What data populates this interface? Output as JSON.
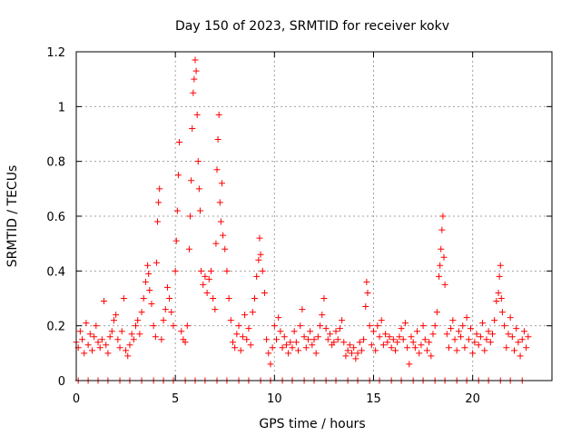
{
  "chart_data": {
    "type": "scatter",
    "title": "Day 150 of 2023, SRMTID for receiver kokv",
    "xlabel": "GPS time / hours",
    "ylabel": "SRMTID / TECUs",
    "xlim": [
      0,
      24
    ],
    "ylim": [
      0,
      1.2
    ],
    "xticks": [
      0,
      5,
      10,
      15,
      20
    ],
    "yticks": [
      0,
      0.2,
      0.4,
      0.6,
      0.8,
      1,
      1.2
    ],
    "xtick_labels": [
      "0",
      "5",
      "10",
      "15",
      "20"
    ],
    "ytick_labels": [
      "0",
      "0.2",
      "0.4",
      "0.6",
      "0.8",
      "1",
      "1.2"
    ],
    "grid": true,
    "marker": "+",
    "marker_color": "#ff0000",
    "series": [
      {
        "name": "SRMTID",
        "points": [
          [
            0.0,
            0.14
          ],
          [
            0.1,
            0.12
          ],
          [
            0.2,
            0.18
          ],
          [
            0.3,
            0.15
          ],
          [
            0.4,
            0.1
          ],
          [
            0.5,
            0.21
          ],
          [
            0.6,
            0.13
          ],
          [
            0.7,
            0.17
          ],
          [
            0.8,
            0.11
          ],
          [
            0.9,
            0.16
          ],
          [
            1.0,
            0.2
          ],
          [
            1.1,
            0.14
          ],
          [
            1.2,
            0.12
          ],
          [
            1.3,
            0.15
          ],
          [
            1.4,
            0.29
          ],
          [
            1.5,
            0.13
          ],
          [
            1.6,
            0.1
          ],
          [
            1.7,
            0.16
          ],
          [
            1.8,
            0.18
          ],
          [
            1.9,
            0.22
          ],
          [
            2.0,
            0.24
          ],
          [
            2.1,
            0.15
          ],
          [
            2.2,
            0.12
          ],
          [
            2.3,
            0.18
          ],
          [
            2.4,
            0.3
          ],
          [
            2.5,
            0.11
          ],
          [
            2.6,
            0.09
          ],
          [
            2.7,
            0.13
          ],
          [
            2.8,
            0.17
          ],
          [
            2.9,
            0.15
          ],
          [
            3.0,
            0.2
          ],
          [
            3.1,
            0.22
          ],
          [
            3.2,
            0.17
          ],
          [
            3.3,
            0.25
          ],
          [
            3.4,
            0.3
          ],
          [
            3.5,
            0.36
          ],
          [
            3.6,
            0.42
          ],
          [
            3.65,
            0.39
          ],
          [
            3.7,
            0.33
          ],
          [
            3.8,
            0.28
          ],
          [
            3.9,
            0.2
          ],
          [
            4.0,
            0.16
          ],
          [
            4.05,
            0.43
          ],
          [
            4.1,
            0.58
          ],
          [
            4.15,
            0.65
          ],
          [
            4.2,
            0.7
          ],
          [
            4.3,
            0.15
          ],
          [
            4.4,
            0.22
          ],
          [
            4.5,
            0.26
          ],
          [
            4.6,
            0.34
          ],
          [
            4.7,
            0.3
          ],
          [
            4.8,
            0.25
          ],
          [
            4.9,
            0.2
          ],
          [
            5.0,
            0.4
          ],
          [
            5.05,
            0.51
          ],
          [
            5.1,
            0.62
          ],
          [
            5.15,
            0.75
          ],
          [
            5.2,
            0.87
          ],
          [
            5.3,
            0.18
          ],
          [
            5.4,
            0.15
          ],
          [
            5.5,
            0.14
          ],
          [
            5.6,
            0.2
          ],
          [
            5.7,
            0.48
          ],
          [
            5.75,
            0.6
          ],
          [
            5.8,
            0.73
          ],
          [
            5.85,
            0.92
          ],
          [
            5.9,
            1.05
          ],
          [
            5.95,
            1.1
          ],
          [
            6.0,
            1.17
          ],
          [
            6.05,
            1.13
          ],
          [
            6.1,
            0.97
          ],
          [
            6.15,
            0.8
          ],
          [
            6.2,
            0.7
          ],
          [
            6.25,
            0.62
          ],
          [
            6.3,
            0.4
          ],
          [
            6.4,
            0.35
          ],
          [
            6.5,
            0.38
          ],
          [
            6.6,
            0.32
          ],
          [
            6.7,
            0.37
          ],
          [
            6.8,
            0.4
          ],
          [
            6.9,
            0.3
          ],
          [
            7.0,
            0.26
          ],
          [
            7.05,
            0.5
          ],
          [
            7.1,
            0.77
          ],
          [
            7.15,
            0.88
          ],
          [
            7.2,
            0.97
          ],
          [
            7.25,
            0.65
          ],
          [
            7.3,
            0.58
          ],
          [
            7.35,
            0.72
          ],
          [
            7.4,
            0.53
          ],
          [
            7.5,
            0.48
          ],
          [
            7.6,
            0.4
          ],
          [
            7.7,
            0.3
          ],
          [
            7.8,
            0.22
          ],
          [
            7.9,
            0.14
          ],
          [
            8.0,
            0.12
          ],
          [
            8.1,
            0.17
          ],
          [
            8.2,
            0.2
          ],
          [
            8.3,
            0.11
          ],
          [
            8.4,
            0.16
          ],
          [
            8.5,
            0.24
          ],
          [
            8.6,
            0.15
          ],
          [
            8.7,
            0.19
          ],
          [
            8.8,
            0.13
          ],
          [
            8.9,
            0.25
          ],
          [
            9.0,
            0.3
          ],
          [
            9.1,
            0.38
          ],
          [
            9.2,
            0.44
          ],
          [
            9.25,
            0.52
          ],
          [
            9.3,
            0.46
          ],
          [
            9.4,
            0.4
          ],
          [
            9.5,
            0.32
          ],
          [
            9.6,
            0.15
          ],
          [
            9.7,
            0.1
          ],
          [
            9.8,
            0.06
          ],
          [
            9.9,
            0.12
          ],
          [
            10.0,
            0.2
          ],
          [
            10.1,
            0.15
          ],
          [
            10.2,
            0.23
          ],
          [
            10.3,
            0.18
          ],
          [
            10.4,
            0.12
          ],
          [
            10.5,
            0.16
          ],
          [
            10.6,
            0.13
          ],
          [
            10.7,
            0.1
          ],
          [
            10.8,
            0.14
          ],
          [
            10.9,
            0.12
          ],
          [
            11.0,
            0.18
          ],
          [
            11.1,
            0.14
          ],
          [
            11.2,
            0.11
          ],
          [
            11.3,
            0.2
          ],
          [
            11.4,
            0.26
          ],
          [
            11.5,
            0.16
          ],
          [
            11.6,
            0.12
          ],
          [
            11.7,
            0.15
          ],
          [
            11.8,
            0.18
          ],
          [
            11.9,
            0.13
          ],
          [
            12.0,
            0.15
          ],
          [
            12.1,
            0.1
          ],
          [
            12.2,
            0.16
          ],
          [
            12.3,
            0.2
          ],
          [
            12.4,
            0.24
          ],
          [
            12.5,
            0.3
          ],
          [
            12.6,
            0.19
          ],
          [
            12.7,
            0.15
          ],
          [
            12.8,
            0.17
          ],
          [
            12.9,
            0.13
          ],
          [
            13.0,
            0.14
          ],
          [
            13.1,
            0.18
          ],
          [
            13.2,
            0.15
          ],
          [
            13.3,
            0.19
          ],
          [
            13.4,
            0.22
          ],
          [
            13.5,
            0.14
          ],
          [
            13.6,
            0.09
          ],
          [
            13.7,
            0.11
          ],
          [
            13.8,
            0.13
          ],
          [
            13.9,
            0.1
          ],
          [
            14.0,
            0.12
          ],
          [
            14.1,
            0.08
          ],
          [
            14.2,
            0.1
          ],
          [
            14.3,
            0.14
          ],
          [
            14.4,
            0.11
          ],
          [
            14.5,
            0.15
          ],
          [
            14.6,
            0.27
          ],
          [
            14.65,
            0.36
          ],
          [
            14.7,
            0.32
          ],
          [
            14.8,
            0.2
          ],
          [
            14.9,
            0.13
          ],
          [
            15.0,
            0.18
          ],
          [
            15.1,
            0.11
          ],
          [
            15.2,
            0.2
          ],
          [
            15.3,
            0.16
          ],
          [
            15.4,
            0.22
          ],
          [
            15.5,
            0.13
          ],
          [
            15.6,
            0.17
          ],
          [
            15.7,
            0.14
          ],
          [
            15.8,
            0.16
          ],
          [
            15.9,
            0.12
          ],
          [
            16.0,
            0.15
          ],
          [
            16.1,
            0.11
          ],
          [
            16.2,
            0.14
          ],
          [
            16.3,
            0.16
          ],
          [
            16.4,
            0.19
          ],
          [
            16.5,
            0.15
          ],
          [
            16.6,
            0.21
          ],
          [
            16.7,
            0.12
          ],
          [
            16.8,
            0.06
          ],
          [
            16.9,
            0.16
          ],
          [
            17.0,
            0.14
          ],
          [
            17.1,
            0.12
          ],
          [
            17.2,
            0.18
          ],
          [
            17.3,
            0.1
          ],
          [
            17.4,
            0.13
          ],
          [
            17.5,
            0.2
          ],
          [
            17.6,
            0.15
          ],
          [
            17.7,
            0.11
          ],
          [
            17.8,
            0.14
          ],
          [
            17.9,
            0.09
          ],
          [
            18.0,
            0.17
          ],
          [
            18.1,
            0.2
          ],
          [
            18.2,
            0.25
          ],
          [
            18.3,
            0.38
          ],
          [
            18.35,
            0.42
          ],
          [
            18.4,
            0.48
          ],
          [
            18.45,
            0.55
          ],
          [
            18.5,
            0.6
          ],
          [
            18.55,
            0.45
          ],
          [
            18.6,
            0.35
          ],
          [
            18.7,
            0.17
          ],
          [
            18.8,
            0.12
          ],
          [
            18.9,
            0.19
          ],
          [
            19.0,
            0.22
          ],
          [
            19.1,
            0.15
          ],
          [
            19.2,
            0.11
          ],
          [
            19.3,
            0.18
          ],
          [
            19.4,
            0.16
          ],
          [
            19.5,
            0.2
          ],
          [
            19.6,
            0.12
          ],
          [
            19.7,
            0.23
          ],
          [
            19.8,
            0.15
          ],
          [
            19.9,
            0.19
          ],
          [
            20.0,
            0.1
          ],
          [
            20.1,
            0.14
          ],
          [
            20.2,
            0.17
          ],
          [
            20.3,
            0.13
          ],
          [
            20.4,
            0.16
          ],
          [
            20.5,
            0.21
          ],
          [
            20.6,
            0.11
          ],
          [
            20.7,
            0.15
          ],
          [
            20.8,
            0.18
          ],
          [
            20.9,
            0.14
          ],
          [
            21.0,
            0.17
          ],
          [
            21.1,
            0.22
          ],
          [
            21.2,
            0.29
          ],
          [
            21.3,
            0.32
          ],
          [
            21.35,
            0.38
          ],
          [
            21.4,
            0.42
          ],
          [
            21.45,
            0.3
          ],
          [
            21.5,
            0.25
          ],
          [
            21.6,
            0.2
          ],
          [
            21.7,
            0.12
          ],
          [
            21.8,
            0.17
          ],
          [
            21.9,
            0.23
          ],
          [
            22.0,
            0.16
          ],
          [
            22.1,
            0.11
          ],
          [
            22.2,
            0.19
          ],
          [
            22.3,
            0.14
          ],
          [
            22.4,
            0.09
          ],
          [
            22.5,
            0.15
          ],
          [
            22.6,
            0.18
          ],
          [
            22.7,
            0.12
          ],
          [
            22.8,
            0.16
          ],
          [
            0.1,
            0.0
          ],
          [
            0.6,
            0.0
          ],
          [
            1.1,
            0.0
          ],
          [
            1.6,
            0.0
          ],
          [
            2.2,
            0.0
          ],
          [
            2.7,
            0.0
          ],
          [
            3.3,
            0.0
          ],
          [
            3.9,
            0.0
          ],
          [
            4.4,
            0.0
          ],
          [
            4.9,
            0.0
          ],
          [
            5.5,
            0.0
          ],
          [
            6.0,
            0.0
          ],
          [
            6.5,
            0.0
          ],
          [
            7.1,
            0.0
          ],
          [
            7.6,
            0.0
          ],
          [
            8.2,
            0.0
          ],
          [
            8.7,
            0.0
          ],
          [
            9.3,
            0.0
          ],
          [
            9.8,
            0.0
          ],
          [
            10.4,
            0.0
          ],
          [
            10.9,
            0.0
          ],
          [
            11.5,
            0.0
          ],
          [
            12.0,
            0.0
          ],
          [
            12.6,
            0.0
          ],
          [
            13.1,
            0.0
          ],
          [
            13.7,
            0.0
          ],
          [
            14.2,
            0.0
          ],
          [
            14.8,
            0.0
          ],
          [
            15.3,
            0.0
          ],
          [
            15.9,
            0.0
          ],
          [
            16.4,
            0.0
          ],
          [
            17.0,
            0.0
          ],
          [
            17.5,
            0.0
          ],
          [
            18.1,
            0.0
          ],
          [
            18.6,
            0.0
          ],
          [
            19.2,
            0.0
          ],
          [
            19.7,
            0.0
          ],
          [
            20.3,
            0.0
          ],
          [
            20.8,
            0.0
          ],
          [
            21.4,
            0.0
          ],
          [
            21.9,
            0.0
          ],
          [
            22.5,
            0.0
          ]
        ]
      }
    ]
  }
}
